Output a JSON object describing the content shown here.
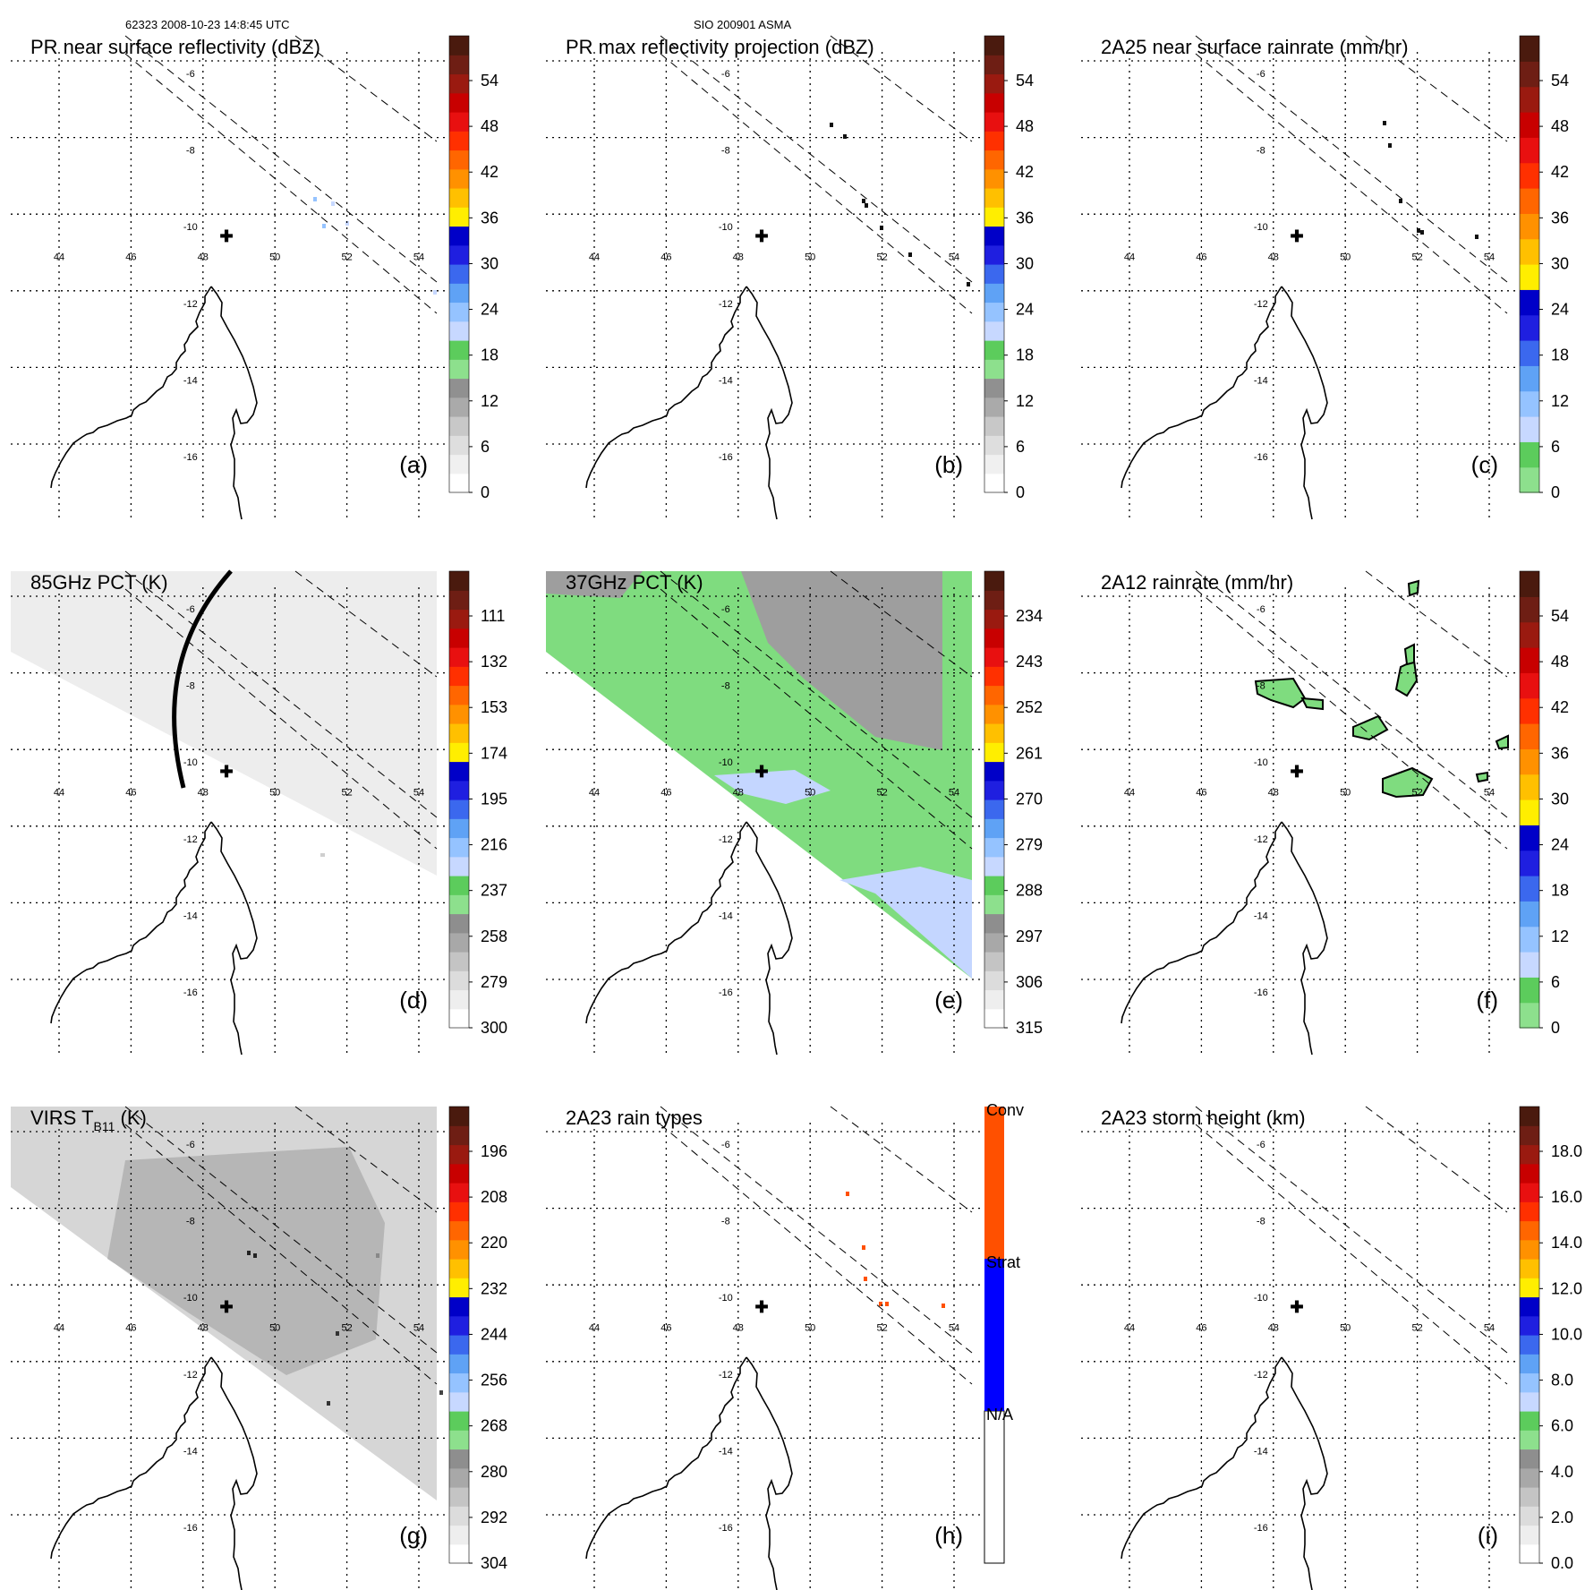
{
  "header": {
    "left": "62323 2008-10-23 14:8:45 UTC",
    "center": "SIO 200901 ASMA"
  },
  "colors": {
    "ramp_reflectivity": [
      "#ffffff",
      "#f0f0f0",
      "#dedede",
      "#c8c8c8",
      "#aaaaaa",
      "#909090",
      "#8de08d",
      "#5ccc5c",
      "#c7d8ff",
      "#95c3ff",
      "#5fa2f5",
      "#3b68ee",
      "#1f1fe0",
      "#0000c8",
      "#ffee00",
      "#ffc000",
      "#ff9100",
      "#ff6600",
      "#ff3000",
      "#e81010",
      "#c80000",
      "#9a1a10",
      "#6e1e14",
      "#4a1a0e"
    ],
    "ramp_rainrate": [
      "#8de08d",
      "#5ccc5c",
      "#c7d8ff",
      "#95c3ff",
      "#5fa2f5",
      "#3b68ee",
      "#1f1fe0",
      "#0000c8",
      "#ffee00",
      "#ffc000",
      "#ff9100",
      "#ff6600",
      "#ff3000",
      "#e81010",
      "#c80000",
      "#9a1a10",
      "#6e1e14",
      "#4a1a0e"
    ],
    "ramp_pct": [
      "#ffffff",
      "#eeeeee",
      "#dcdcdc",
      "#c4c4c4",
      "#a8a8a8",
      "#8e8e8e",
      "#8de08d",
      "#5ccc5c",
      "#c7d8ff",
      "#95c3ff",
      "#5fa2f5",
      "#3b68ee",
      "#1f1fe0",
      "#0000c8",
      "#ffee00",
      "#ffc000",
      "#ff9100",
      "#ff6600",
      "#ff3000",
      "#e81010",
      "#c80000",
      "#9a1a10",
      "#6e1e14",
      "#4a1a0e"
    ],
    "ramp_raintype": [
      "#ffffff",
      "#0000ff",
      "#ff5000"
    ],
    "green": "#7fdc7f",
    "lightblue": "#c4d6ff",
    "pct85_swath": "#ededed",
    "pct37_gray": "#9e9e9e",
    "virs_gray": "#d6d6d6",
    "virs_dark": "#b6b6b6"
  },
  "map": {
    "lon_labels": [
      "44",
      "46",
      "48",
      "50",
      "52",
      "54"
    ],
    "lat_labels": [
      "-6",
      "-8",
      "-10",
      "-12",
      "-14",
      "-16"
    ],
    "center_marker": "✚"
  },
  "chart_data": [
    {
      "id": "a",
      "type": "heatmap",
      "title": "PR near surface reflectivity (dBZ)",
      "panel_label": "(a)",
      "colorbar": {
        "ticks": [
          "54",
          "48",
          "42",
          "36",
          "30",
          "24",
          "18",
          "12",
          "6",
          "0"
        ],
        "range": [
          0,
          60
        ],
        "ramp": "ramp_reflectivity"
      }
    },
    {
      "id": "b",
      "type": "heatmap",
      "title": "PR max reflectivity projection (dBZ)",
      "panel_label": "(b)",
      "colorbar": {
        "ticks": [
          "54",
          "48",
          "42",
          "36",
          "30",
          "24",
          "18",
          "12",
          "6",
          "0"
        ],
        "range": [
          0,
          60
        ],
        "ramp": "ramp_reflectivity"
      }
    },
    {
      "id": "c",
      "type": "heatmap",
      "title": "2A25 near surface rainrate (mm/hr)",
      "panel_label": "(c)",
      "colorbar": {
        "ticks": [
          "54",
          "48",
          "42",
          "36",
          "30",
          "24",
          "18",
          "12",
          "6",
          "0"
        ],
        "range": [
          0,
          60
        ],
        "ramp": "ramp_rainrate"
      }
    },
    {
      "id": "d",
      "type": "heatmap",
      "title": "85GHz PCT (K)",
      "panel_label": "(d)",
      "colorbar": {
        "ticks": [
          "111",
          "132",
          "153",
          "174",
          "195",
          "216",
          "237",
          "258",
          "279",
          "300"
        ],
        "range": [
          300,
          90
        ],
        "ramp": "ramp_pct"
      }
    },
    {
      "id": "e",
      "type": "heatmap",
      "title": "37GHz PCT (K)",
      "panel_label": "(e)",
      "colorbar": {
        "ticks": [
          "234",
          "243",
          "252",
          "261",
          "270",
          "279",
          "288",
          "297",
          "306",
          "315"
        ],
        "range": [
          315,
          225
        ],
        "ramp": "ramp_pct"
      }
    },
    {
      "id": "f",
      "type": "heatmap",
      "title": "2A12 rainrate (mm/hr)",
      "panel_label": "(f)",
      "colorbar": {
        "ticks": [
          "54",
          "48",
          "42",
          "36",
          "30",
          "24",
          "18",
          "12",
          "6",
          "0"
        ],
        "range": [
          0,
          60
        ],
        "ramp": "ramp_rainrate"
      }
    },
    {
      "id": "g",
      "type": "heatmap",
      "title": "VIRS T",
      "title_sub": "B11",
      "title_suffix": " (K)",
      "panel_label": "(g)",
      "colorbar": {
        "ticks": [
          "196",
          "208",
          "220",
          "232",
          "244",
          "256",
          "268",
          "280",
          "292",
          "304"
        ],
        "range": [
          304,
          184
        ],
        "ramp": "ramp_pct"
      }
    },
    {
      "id": "h",
      "type": "heatmap",
      "title": "2A23 rain types",
      "panel_label": "(h)",
      "colorbar": {
        "categories": [
          "Conv",
          "Strat",
          "N/A"
        ],
        "ramp": "ramp_raintype"
      }
    },
    {
      "id": "i",
      "type": "heatmap",
      "title": "2A23 storm height (km)",
      "panel_label": "(i)",
      "colorbar": {
        "ticks": [
          "18.0",
          "16.0",
          "14.0",
          "12.0",
          "10.0",
          "8.0",
          "6.0",
          "4.0",
          "2.0",
          "0.0"
        ],
        "range": [
          0,
          20
        ],
        "ramp": "ramp_pct"
      }
    }
  ]
}
